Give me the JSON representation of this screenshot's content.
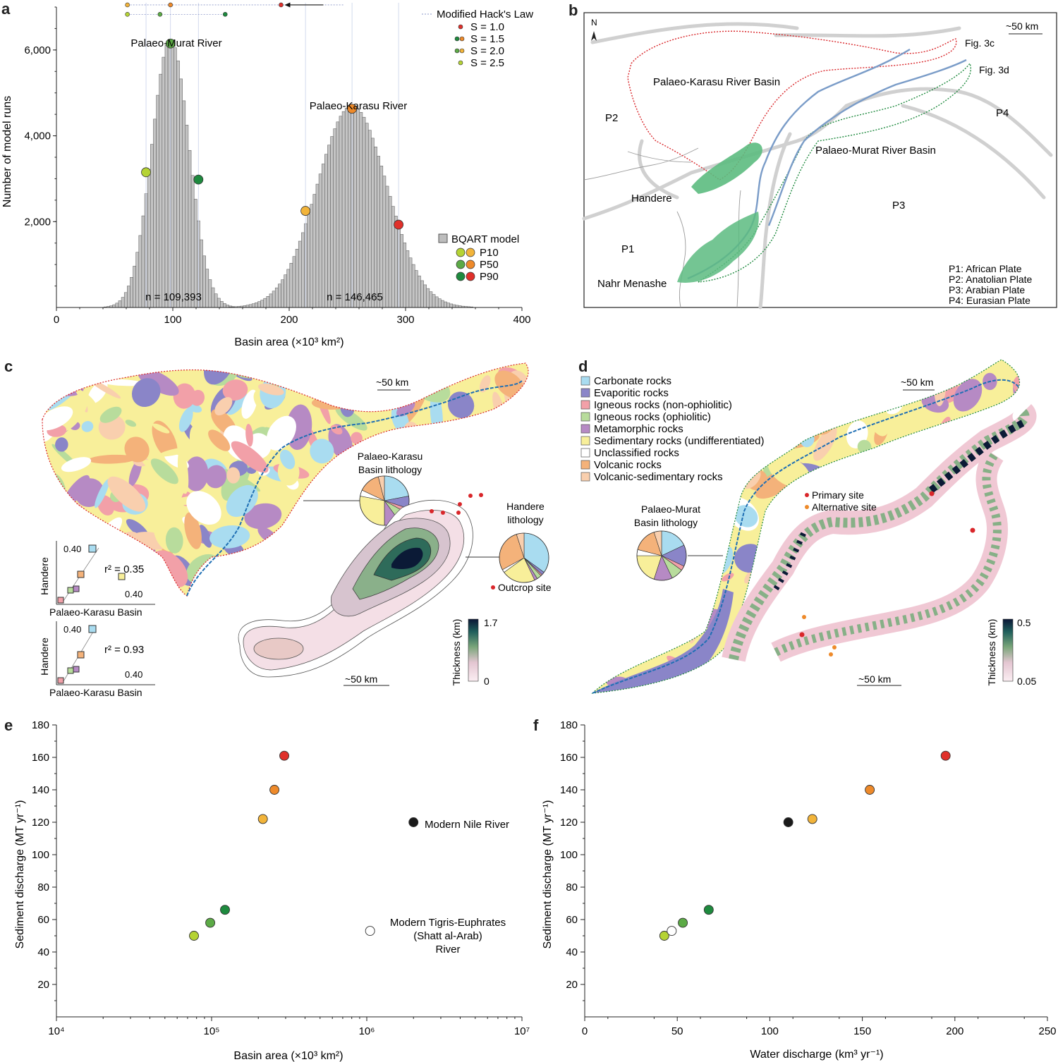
{
  "panels": {
    "a": "a",
    "b": "b",
    "c": "c",
    "d": "d",
    "e": "e",
    "f": "f"
  },
  "chart_data": [
    {
      "id": "a",
      "type": "bar",
      "xlabel": "Basin area (×10³ km²)",
      "ylabel": "Number of model runs",
      "xlim": [
        0,
        400
      ],
      "ylim": [
        0,
        7000
      ],
      "xticks": [
        "0",
        "100",
        "200",
        "300",
        "400"
      ],
      "yticks": [
        "2,000",
        "4,000",
        "6,000"
      ],
      "series": [
        {
          "name": "Palaeo-Murat River",
          "mean": 98,
          "sd": 16,
          "peak": 6250,
          "n_label": "n = 109,393"
        },
        {
          "name": "Palaeo-Karasu River",
          "mean": 254,
          "sd": 30,
          "peak": 4700,
          "n_label": "n = 146,465"
        }
      ],
      "percentile_points": [
        {
          "basin": "Palaeo-Murat River",
          "p": "P10",
          "x": 77,
          "y": 3150,
          "color": "#b5d334"
        },
        {
          "basin": "Palaeo-Murat River",
          "p": "P50",
          "x": 98,
          "y": 6150,
          "color": "#5caa46"
        },
        {
          "basin": "Palaeo-Murat River",
          "p": "P90",
          "x": 122,
          "y": 2980,
          "color": "#1e8a3e"
        },
        {
          "basin": "Palaeo-Karasu River",
          "p": "P10",
          "x": 214,
          "y": 2250,
          "color": "#f2b43a"
        },
        {
          "basin": "Palaeo-Karasu River",
          "p": "P50",
          "x": 254,
          "y": 4630,
          "color": "#ee8a2a"
        },
        {
          "basin": "Palaeo-Karasu River",
          "p": "P90",
          "x": 294,
          "y": 1930,
          "color": "#e0302a"
        }
      ],
      "hack_rows": [
        {
          "y": 7050,
          "points": [
            {
              "x": 61,
              "color": "#f2b43a"
            },
            {
              "x": 98,
              "color": "#ee8a2a"
            },
            {
              "x": 193,
              "color": "#e0302a"
            }
          ]
        },
        {
          "y": 6830,
          "points": [
            {
              "x": 61,
              "color": "#b5d334"
            },
            {
              "x": 89,
              "color": "#5caa46"
            },
            {
              "x": 145,
              "color": "#1e8a3e"
            }
          ]
        }
      ],
      "hack_legend": {
        "title": "Modified Hack's Law",
        "items": [
          {
            "label": "S = 1.0",
            "colors": [
              "#e0302a"
            ]
          },
          {
            "label": "S = 1.5",
            "colors": [
              "#1e8a3e",
              "#ee8a2a"
            ]
          },
          {
            "label": "S = 2.0",
            "colors": [
              "#5caa46",
              "#f2b43a"
            ]
          },
          {
            "label": "S = 2.5",
            "colors": [
              "#b5d334"
            ]
          }
        ]
      },
      "model_legend": {
        "bqart": "BQART model",
        "items": [
          {
            "label": "P10",
            "colors": [
              "#b5d334",
              "#f2b43a"
            ]
          },
          {
            "label": "P50",
            "colors": [
              "#5caa46",
              "#ee8a2a"
            ]
          },
          {
            "label": "P90",
            "colors": [
              "#1e8a3e",
              "#e0302a"
            ]
          }
        ]
      }
    },
    {
      "id": "e",
      "type": "scatter",
      "xlabel": "Basin area (×10³ km²)",
      "ylabel": "Sediment discharge (MT yr⁻¹)",
      "xscale": "log",
      "xlim": [
        10000,
        10000000
      ],
      "ylim": [
        0,
        180
      ],
      "xticks": [
        "10⁴",
        "10⁵",
        "10⁶",
        "10⁷"
      ],
      "yticks": [
        "20",
        "40",
        "60",
        "80",
        "100",
        "120",
        "140",
        "160",
        "180"
      ],
      "points": [
        {
          "x": 77000,
          "y": 50,
          "color": "#b5d334"
        },
        {
          "x": 98000,
          "y": 58,
          "color": "#5caa46"
        },
        {
          "x": 122000,
          "y": 66,
          "color": "#1e8a3e"
        },
        {
          "x": 214000,
          "y": 122,
          "color": "#f2b43a"
        },
        {
          "x": 254000,
          "y": 140,
          "color": "#ee8a2a"
        },
        {
          "x": 294000,
          "y": 161,
          "color": "#e0302a"
        },
        {
          "x": 2000000,
          "y": 120,
          "color": "#1a1a1a",
          "label": "Modern Nile River"
        },
        {
          "x": 1050000,
          "y": 53,
          "color": "#ffffff",
          "label": [
            "Modern Tigris-Euphrates",
            "(Shatt al-Arab)",
            "River"
          ]
        }
      ]
    },
    {
      "id": "f",
      "type": "scatter",
      "xlabel": "Water discharge (km³ yr⁻¹)",
      "ylabel": "Sediment discharge (MT yr⁻¹)",
      "xlim": [
        0,
        250
      ],
      "ylim": [
        0,
        180
      ],
      "xticks": [
        "0",
        "50",
        "100",
        "150",
        "200",
        "250"
      ],
      "yticks": [
        "20",
        "40",
        "60",
        "80",
        "100",
        "120",
        "140",
        "160",
        "180"
      ],
      "points": [
        {
          "x": 43,
          "y": 50,
          "color": "#b5d334"
        },
        {
          "x": 47,
          "y": 53,
          "color": "#ffffff"
        },
        {
          "x": 53,
          "y": 58,
          "color": "#5caa46"
        },
        {
          "x": 67,
          "y": 66,
          "color": "#1e8a3e"
        },
        {
          "x": 110,
          "y": 120,
          "color": "#1a1a1a"
        },
        {
          "x": 123,
          "y": 122,
          "color": "#f2b43a"
        },
        {
          "x": 154,
          "y": 140,
          "color": "#ee8a2a"
        },
        {
          "x": 195,
          "y": 161,
          "color": "#e0302a"
        }
      ]
    }
  ],
  "map_b": {
    "north": "N",
    "scale": "~50 km",
    "fig3c": "Fig. 3c",
    "fig3d": "Fig. 3d",
    "karasu_basin": "Palaeo-Karasu River Basin",
    "murat_basin": "Palaeo-Murat River Basin",
    "handere": "Handere",
    "nahr": "Nahr Menashe",
    "p1": "P1",
    "p2": "P2",
    "p3": "P3",
    "p4": "P4",
    "plates": [
      "P1: African Plate",
      "P2: Anatolian Plate",
      "P3: Arabian Plate",
      "P4: Eurasian Plate"
    ]
  },
  "map_c": {
    "scale_top": "~50 km",
    "scale_bottom": "~50 km",
    "karasu_lith": [
      "Palaeo-Karasu",
      "Basin lithology"
    ],
    "handere_lith": [
      "Handere",
      "lithology"
    ],
    "outcrop": "Outcrop site",
    "thickness_label": "Thickness (km)",
    "thickness_max": "1.7",
    "thickness_min": "0",
    "corr1": {
      "r2": "r² = 0.35",
      "ylab": "Handere",
      "xlab": "Palaeo-Karasu Basin",
      "tick_y": "0.40",
      "tick_x": "0.40"
    },
    "corr2": {
      "r2": "r² = 0.93",
      "ylab": "Handere",
      "xlab": "Palaeo-Karasu Basin",
      "tick_y": "0.40",
      "tick_x": "0.40"
    }
  },
  "map_d": {
    "scale_top": "~50 km",
    "scale_bottom": "~50 km",
    "murat_lith": [
      "Palaeo-Murat",
      "Basin lithology"
    ],
    "primary": "Primary site",
    "alternative": "Alternative site",
    "thickness_label": "Thickness (km)",
    "thickness_max": "0.5",
    "thickness_min": "0.05",
    "lithology_legend": [
      {
        "label": "Carbonate rocks",
        "color": "#a9dcf0"
      },
      {
        "label": "Evaporitic rocks",
        "color": "#8a85c8"
      },
      {
        "label": "Igneous rocks (non-ophiolitic)",
        "color": "#f2a0a8"
      },
      {
        "label": "Igneous rocks (ophiolitic)",
        "color": "#b8dc9c"
      },
      {
        "label": "Metamorphic rocks",
        "color": "#b68ac4"
      },
      {
        "label": "Sedimentary rocks (undifferentiated)",
        "color": "#f8ef9a"
      },
      {
        "label": "Unclassified rocks",
        "color": "#ffffff"
      },
      {
        "label": "Volcanic rocks",
        "color": "#f4b27a"
      },
      {
        "label": "Volcanic-sedimentary rocks",
        "color": "#f9cfae"
      }
    ]
  },
  "pies": {
    "karasu": [
      22,
      8,
      3,
      7,
      10,
      28,
      4,
      14,
      4
    ],
    "handere": [
      35,
      2,
      1,
      3,
      2,
      22,
      2,
      28,
      5
    ],
    "murat": [
      18,
      14,
      3,
      8,
      12,
      20,
      4,
      16,
      5
    ]
  }
}
